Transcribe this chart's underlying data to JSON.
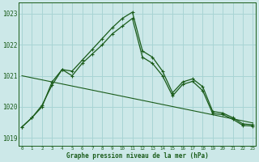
{
  "xlabel": "Graphe pression niveau de la mer (hPa)",
  "background_color": "#cce8e8",
  "grid_color": "#a8d4d4",
  "line_color": "#1a5c1a",
  "x_ticks": [
    0,
    1,
    2,
    3,
    4,
    5,
    6,
    7,
    8,
    9,
    10,
    11,
    12,
    13,
    14,
    15,
    16,
    17,
    18,
    19,
    20,
    21,
    22,
    23
  ],
  "ylim": [
    1018.75,
    1023.35
  ],
  "yticks": [
    1019,
    1020,
    1021,
    1022,
    1023
  ],
  "series1": [
    1019.35,
    1019.65,
    1020.0,
    1020.8,
    1021.2,
    1021.15,
    1021.5,
    1021.85,
    1022.2,
    1022.55,
    1022.85,
    1023.05,
    1021.8,
    1021.6,
    1021.15,
    1020.45,
    1020.8,
    1020.9,
    1020.65,
    1019.85,
    1019.8,
    1019.65,
    1019.45,
    1019.42
  ],
  "series2": [
    1019.35,
    1019.65,
    1020.05,
    1020.7,
    1021.2,
    1021.0,
    1021.4,
    1021.7,
    1022.0,
    1022.35,
    1022.6,
    1022.85,
    1021.6,
    1021.4,
    1021.0,
    1020.35,
    1020.72,
    1020.82,
    1020.52,
    1019.78,
    1019.75,
    1019.6,
    1019.4,
    1019.38
  ],
  "trend_x": [
    0,
    23
  ],
  "trend_y": [
    1021.0,
    1019.48
  ]
}
